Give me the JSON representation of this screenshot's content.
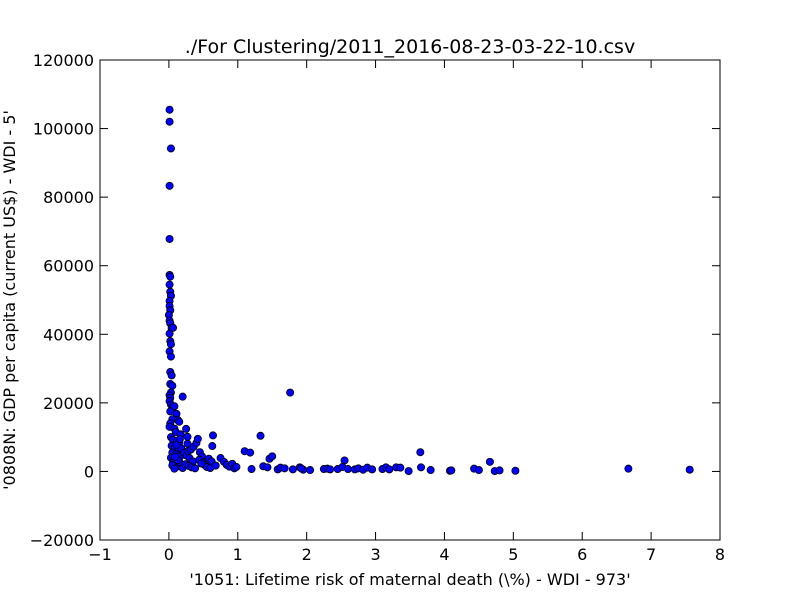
{
  "chart_data": {
    "type": "scatter",
    "title": "./For Clustering/2011_2016-08-23-03-22-10.csv",
    "xlabel": "'1051: Lifetime risk of maternal death  (\\%) - WDI - 973'",
    "ylabel": "'0808N: GDP per capita  (current US$) - WDI - 5'",
    "xlim": [
      -1,
      8
    ],
    "ylim": [
      -20000,
      120000
    ],
    "xticks": [
      -1,
      0,
      1,
      2,
      3,
      4,
      5,
      6,
      7,
      8
    ],
    "yticks": [
      -20000,
      0,
      20000,
      40000,
      60000,
      80000,
      100000,
      120000
    ],
    "xtick_labels": [
      "−1",
      "0",
      "1",
      "2",
      "3",
      "4",
      "5",
      "6",
      "7",
      "8"
    ],
    "ytick_labels": [
      "−20000",
      "0",
      "20000",
      "40000",
      "60000",
      "80000",
      "100000",
      "120000"
    ],
    "grid": false,
    "legend": "none",
    "marker_color": "#0000ff",
    "marker_edge_color": "#000000",
    "points": [
      [
        0.01,
        105500
      ],
      [
        0.01,
        102000
      ],
      [
        0.03,
        94200
      ],
      [
        0.01,
        83300
      ],
      [
        0.01,
        67800
      ],
      [
        0.01,
        57300
      ],
      [
        0.02,
        56800
      ],
      [
        0.01,
        54500
      ],
      [
        0.02,
        52400
      ],
      [
        0.03,
        51200
      ],
      [
        0.01,
        49700
      ],
      [
        0.01,
        48200
      ],
      [
        0.02,
        47000
      ],
      [
        0.0,
        45600
      ],
      [
        0.01,
        44000
      ],
      [
        0.02,
        43200
      ],
      [
        0.04,
        41800
      ],
      [
        0.06,
        41900
      ],
      [
        0.01,
        40200
      ],
      [
        0.02,
        38000
      ],
      [
        0.03,
        37100
      ],
      [
        0.01,
        35000
      ],
      [
        0.03,
        33500
      ],
      [
        0.02,
        29000
      ],
      [
        0.04,
        28000
      ],
      [
        0.02,
        25500
      ],
      [
        0.05,
        25000
      ],
      [
        0.03,
        23000
      ],
      [
        0.01,
        22200
      ],
      [
        0.02,
        21500
      ],
      [
        0.01,
        20500
      ],
      [
        0.03,
        19500
      ],
      [
        0.05,
        18700
      ],
      [
        0.08,
        19000
      ],
      [
        0.02,
        17500
      ],
      [
        0.11,
        16800
      ],
      [
        0.05,
        15200
      ],
      [
        0.13,
        15000
      ],
      [
        0.02,
        14000
      ],
      [
        0.15,
        14500
      ],
      [
        0.01,
        13000
      ],
      [
        0.08,
        12500
      ],
      [
        0.1,
        11500
      ],
      [
        0.17,
        10800
      ],
      [
        0.03,
        10000
      ],
      [
        0.06,
        9200
      ],
      [
        0.12,
        9000
      ],
      [
        0.15,
        8500
      ],
      [
        0.04,
        7500
      ],
      [
        0.09,
        7000
      ],
      [
        0.14,
        6500
      ],
      [
        0.2,
        6000
      ],
      [
        0.05,
        5500
      ],
      [
        0.1,
        5000
      ],
      [
        0.17,
        4500
      ],
      [
        0.03,
        4000
      ],
      [
        0.08,
        3500
      ],
      [
        0.12,
        3000
      ],
      [
        0.06,
        2500
      ],
      [
        0.1,
        2000
      ],
      [
        0.14,
        1500
      ],
      [
        0.2,
        1000
      ],
      [
        0.05,
        1800
      ],
      [
        0.08,
        800
      ],
      [
        0.15,
        2800
      ],
      [
        0.13,
        3300
      ],
      [
        0.09,
        4300
      ],
      [
        0.18,
        6700
      ],
      [
        0.11,
        7800
      ],
      [
        0.16,
        9400
      ],
      [
        0.22,
        5400
      ],
      [
        0.26,
        4600
      ],
      [
        0.3,
        3900
      ],
      [
        0.35,
        2900
      ],
      [
        0.24,
        2100
      ],
      [
        0.29,
        1600
      ],
      [
        0.33,
        1200
      ],
      [
        0.38,
        900
      ],
      [
        0.28,
        5900
      ],
      [
        0.32,
        6400
      ],
      [
        0.27,
        8100
      ],
      [
        0.36,
        7200
      ],
      [
        0.4,
        8300
      ],
      [
        0.2,
        21800
      ],
      [
        0.25,
        12400
      ],
      [
        0.27,
        10100
      ],
      [
        0.42,
        9500
      ],
      [
        0.45,
        5600
      ],
      [
        0.48,
        4400
      ],
      [
        0.44,
        3400
      ],
      [
        0.5,
        2600
      ],
      [
        0.52,
        1900
      ],
      [
        0.55,
        1300
      ],
      [
        0.6,
        1000
      ],
      [
        0.47,
        2300
      ],
      [
        0.58,
        3700
      ],
      [
        0.62,
        2900
      ],
      [
        0.63,
        7400
      ],
      [
        0.64,
        10500
      ],
      [
        0.68,
        1700
      ],
      [
        0.75,
        3900
      ],
      [
        0.8,
        2800
      ],
      [
        0.84,
        1900
      ],
      [
        0.88,
        1400
      ],
      [
        0.92,
        2200
      ],
      [
        0.95,
        900
      ],
      [
        0.98,
        1300
      ],
      [
        1.1,
        5900
      ],
      [
        1.18,
        5500
      ],
      [
        1.2,
        700
      ],
      [
        1.33,
        10400
      ],
      [
        1.37,
        1500
      ],
      [
        1.43,
        1200
      ],
      [
        1.46,
        3700
      ],
      [
        1.5,
        4400
      ],
      [
        1.58,
        600
      ],
      [
        1.62,
        1100
      ],
      [
        1.68,
        900
      ],
      [
        1.76,
        23000
      ],
      [
        1.8,
        600
      ],
      [
        1.9,
        1200
      ],
      [
        1.95,
        500
      ],
      [
        1.92,
        900
      ],
      [
        2.05,
        400
      ],
      [
        2.25,
        700
      ],
      [
        2.3,
        800
      ],
      [
        2.34,
        600
      ],
      [
        2.45,
        700
      ],
      [
        2.55,
        3200
      ],
      [
        2.52,
        1300
      ],
      [
        2.6,
        700
      ],
      [
        2.7,
        600
      ],
      [
        2.75,
        900
      ],
      [
        2.82,
        500
      ],
      [
        2.88,
        1100
      ],
      [
        2.95,
        600
      ],
      [
        3.1,
        700
      ],
      [
        3.15,
        1200
      ],
      [
        3.2,
        600
      ],
      [
        3.3,
        1200
      ],
      [
        3.36,
        1100
      ],
      [
        3.48,
        100
      ],
      [
        3.65,
        5600
      ],
      [
        3.66,
        1200
      ],
      [
        3.8,
        400
      ],
      [
        4.08,
        200
      ],
      [
        4.1,
        300
      ],
      [
        4.43,
        800
      ],
      [
        4.5,
        400
      ],
      [
        4.66,
        2800
      ],
      [
        4.73,
        100
      ],
      [
        4.8,
        300
      ],
      [
        5.03,
        200
      ],
      [
        6.67,
        800
      ],
      [
        7.56,
        500
      ]
    ]
  }
}
